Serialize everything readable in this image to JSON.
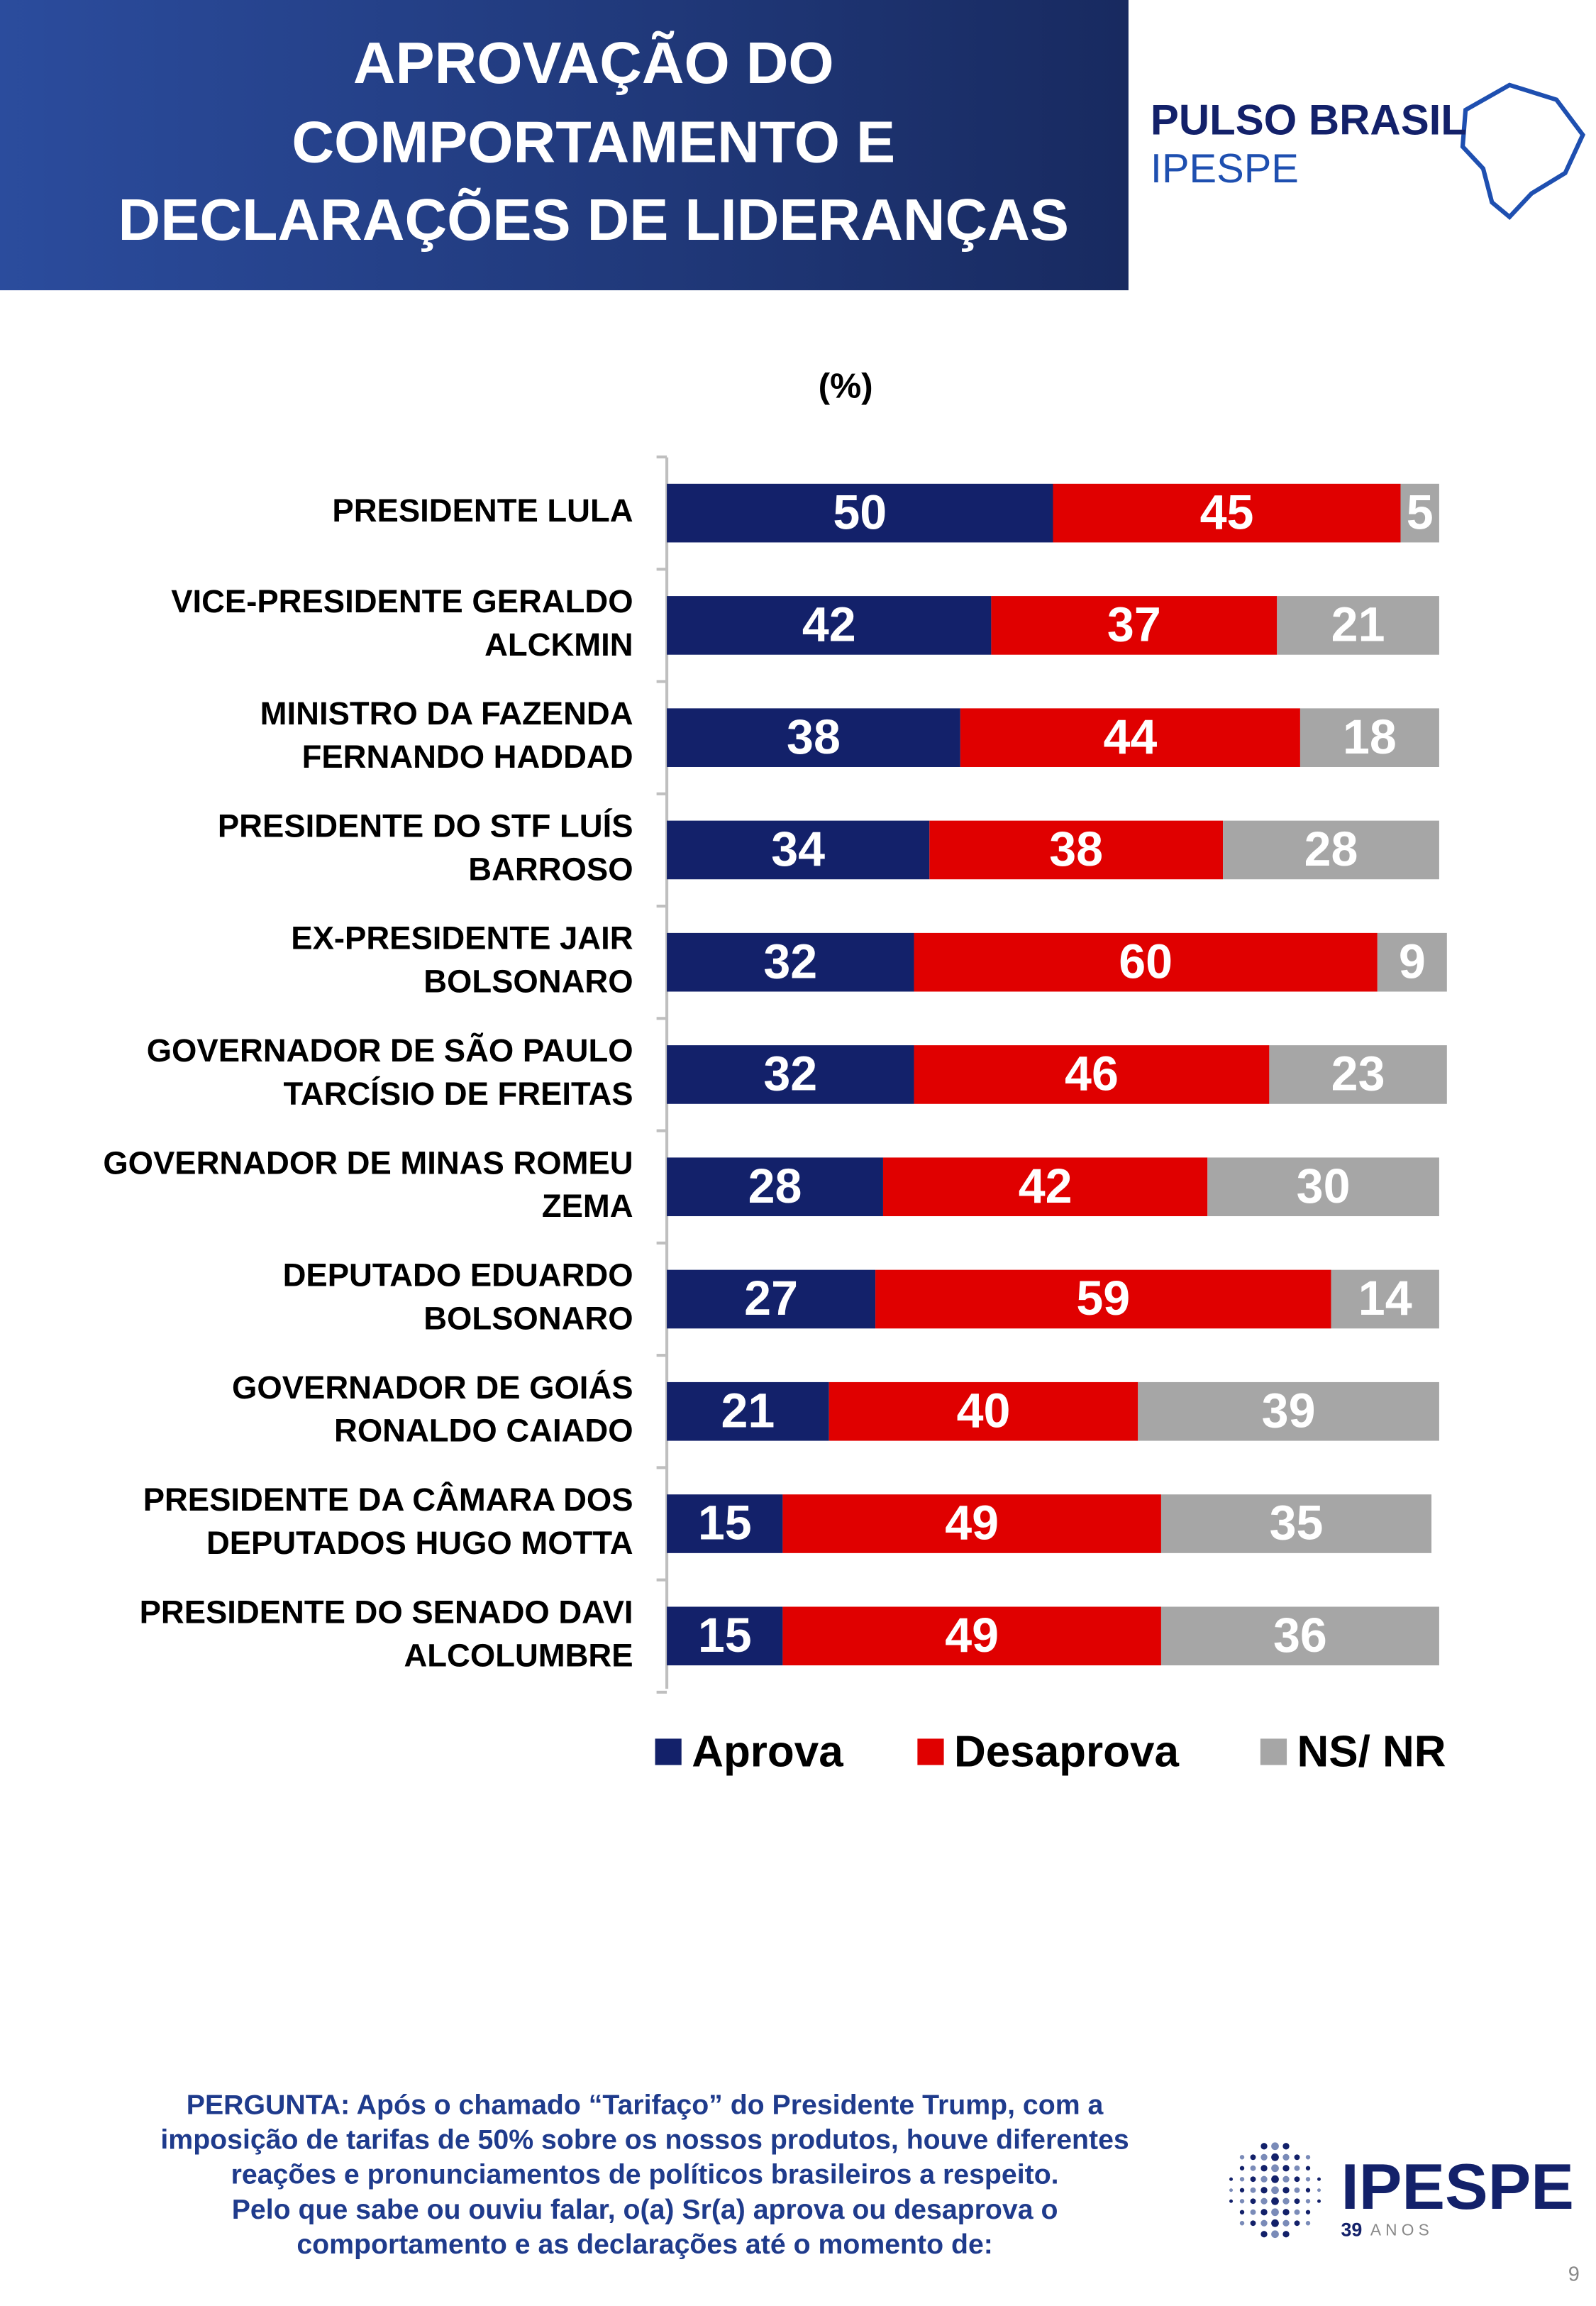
{
  "header": {
    "title": [
      "APROVAÇÃO DO",
      "COMPORTAMENTO E",
      "DECLARAÇÕES DE LIDERANÇAS"
    ]
  },
  "brand": {
    "name": "PULSO BRASIL",
    "sub": "IPESPE"
  },
  "chart_data": {
    "type": "stacked-bar-horizontal",
    "subtitle": "(%)",
    "categories": [
      [
        "PRESIDENTE LULA"
      ],
      [
        "VICE-PRESIDENTE GERALDO",
        "ALCKMIN"
      ],
      [
        "MINISTRO DA FAZENDA",
        "FERNANDO HADDAD"
      ],
      [
        "PRESIDENTE DO STF LUÍS",
        "BARROSO"
      ],
      [
        "EX-PRESIDENTE JAIR",
        "BOLSONARO"
      ],
      [
        "GOVERNADOR DE SÃO PAULO",
        "TARCÍSIO DE FREITAS"
      ],
      [
        "GOVERNADOR DE MINAS ROMEU",
        "ZEMA"
      ],
      [
        "DEPUTADO EDUARDO",
        "BOLSONARO"
      ],
      [
        "GOVERNADOR DE GOIÁS",
        "RONALDO CAIADO"
      ],
      [
        "PRESIDENTE DA CÂMARA DOS",
        "DEPUTADOS HUGO MOTTA"
      ],
      [
        "PRESIDENTE DO SENADO DAVI",
        "ALCOLUMBRE"
      ]
    ],
    "series": [
      {
        "name": "Aprova",
        "color": "#13216a",
        "values": [
          50,
          42,
          38,
          34,
          32,
          32,
          28,
          27,
          21,
          15,
          15
        ]
      },
      {
        "name": "Desaprova",
        "color": "#e00000",
        "values": [
          45,
          37,
          44,
          38,
          60,
          46,
          42,
          59,
          40,
          49,
          49
        ]
      },
      {
        "name": "NS/ NR",
        "color": "#a6a6a6",
        "values": [
          5,
          21,
          18,
          28,
          9,
          23,
          30,
          14,
          39,
          35,
          36
        ]
      }
    ],
    "xlim": [
      0,
      100
    ],
    "legend": "bottom"
  },
  "question": [
    "PERGUNTA: Após o chamado “Tarifaço” do Presidente Trump, com a",
    "imposição de tarifas de 50% sobre os nossos produtos, houve diferentes",
    "reações e pronunciamentos de políticos brasileiros a respeito.",
    "Pelo que sabe ou ouviu falar, o(a) Sr(a) aprova ou desaprova o",
    "comportamento e as declarações até o momento de:"
  ],
  "logo": {
    "name": "IPESPE",
    "years": "39",
    "years_word": "ANOS"
  },
  "page_number": "9"
}
